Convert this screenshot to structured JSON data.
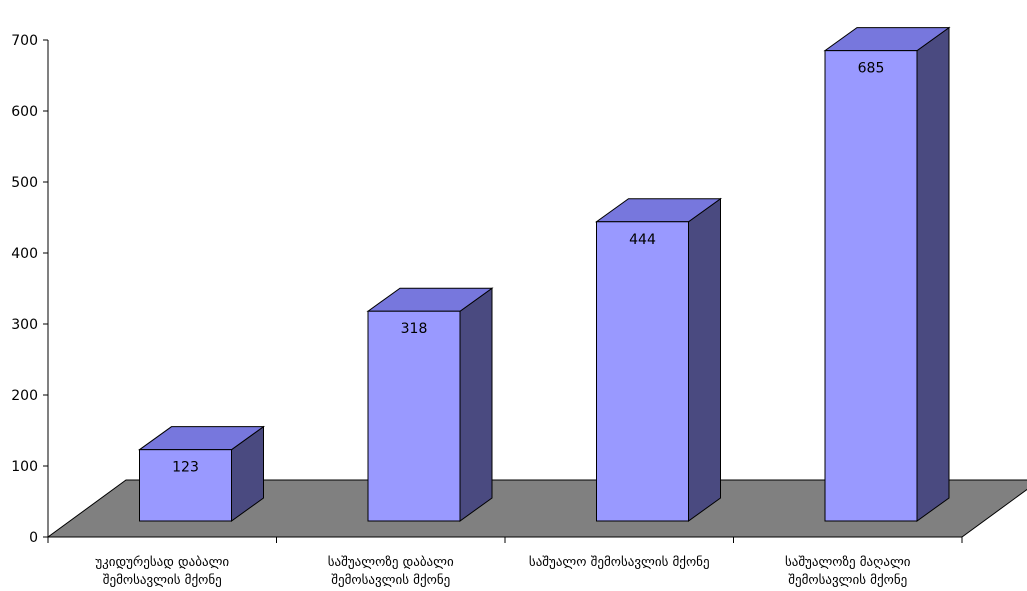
{
  "chart_data": {
    "type": "bar",
    "title": "",
    "xlabel": "",
    "ylabel": "",
    "ylim": [
      0,
      700
    ],
    "y_ticks": [
      0,
      100,
      200,
      300,
      400,
      500,
      600,
      700
    ],
    "categories": [
      [
        "უკიდურესად დაბალი",
        "შემოსავლის მქონე"
      ],
      [
        "საშუალოზე დაბალი",
        "შემოსავლის მქონე"
      ],
      [
        "საშუალო შემოსავლის მქონე"
      ],
      [
        "საშუალოზე მაღალი",
        "შემოსავლის მქონე"
      ]
    ],
    "values": [
      123,
      318,
      444,
      685
    ],
    "grid": false,
    "legend": "none",
    "style": "3d-column",
    "colors": {
      "bar_front": "#9999ff",
      "bar_top": "#7777dd",
      "bar_side": "#4a4a80",
      "floor": "#808080",
      "stroke": "#000000"
    }
  }
}
